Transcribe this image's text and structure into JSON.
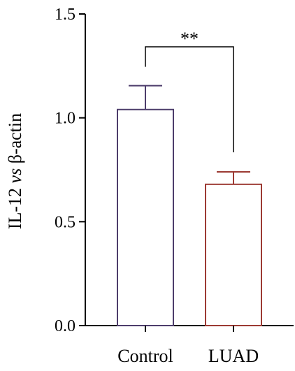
{
  "chart_data": {
    "type": "bar",
    "categories": [
      "Control",
      "LUAD"
    ],
    "values": [
      1.04,
      0.68
    ],
    "errors": [
      0.115,
      0.06
    ],
    "colors": [
      "#4d3d6b",
      "#9c3a33"
    ],
    "ylabel_parts": [
      "IL-12 ",
      "vs",
      " β-actin"
    ],
    "ylim": [
      0,
      1.5
    ],
    "yticks": [
      0.0,
      0.5,
      1.0,
      1.5
    ],
    "ytick_labels": [
      "0.0",
      "0.5",
      "1.0",
      "1.5"
    ],
    "significance": {
      "label": "**",
      "between": [
        0,
        1
      ]
    },
    "grid": false,
    "legend": "none"
  }
}
